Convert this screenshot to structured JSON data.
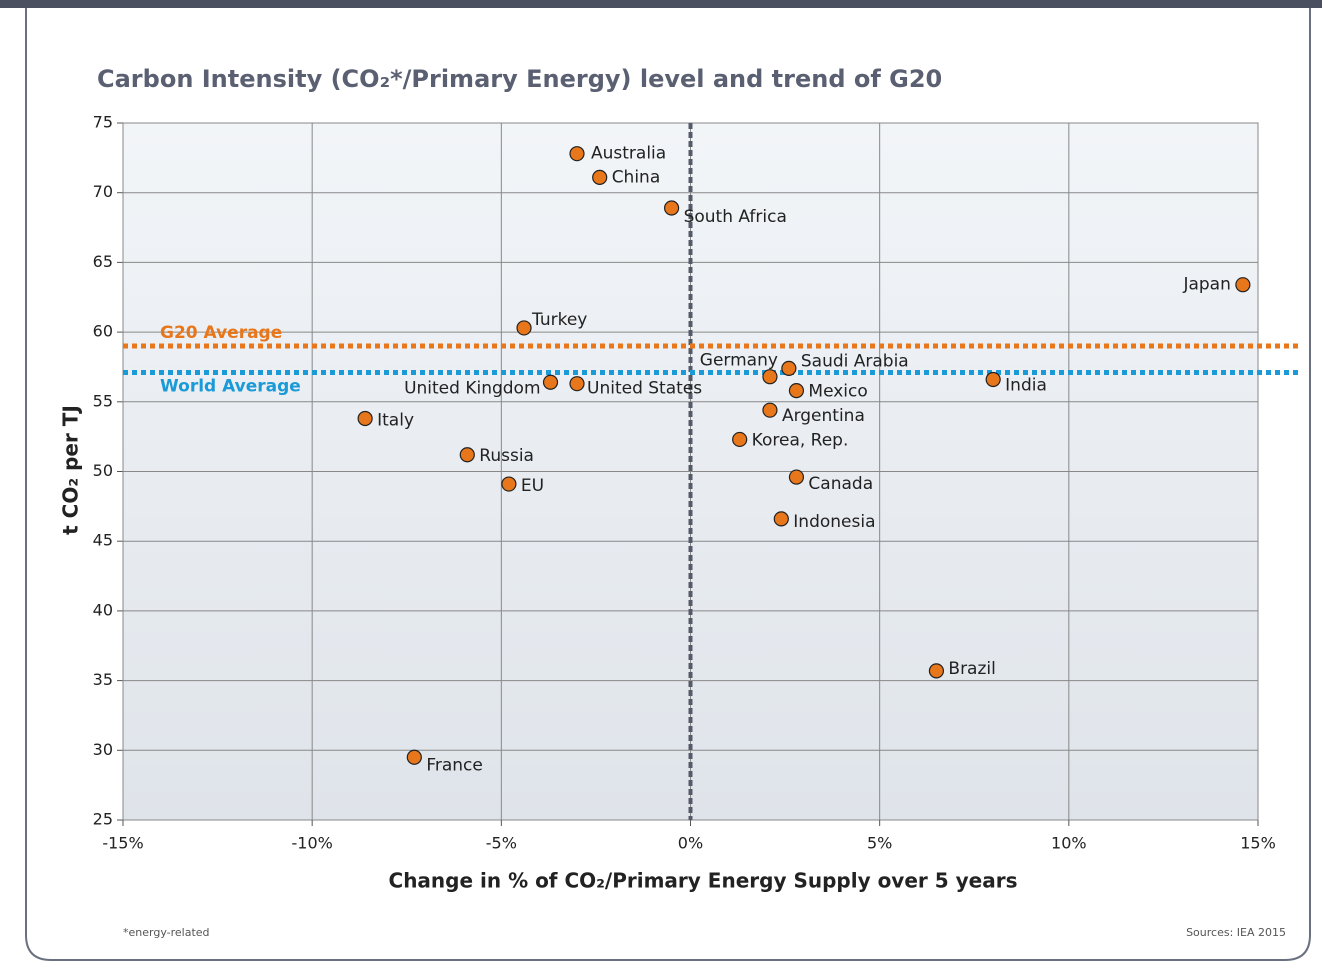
{
  "chart_data": {
    "type": "scatter",
    "title": "Carbon Intensity (CO₂*/Primary Energy) level and trend of G20",
    "x_label": "Change in % of CO₂/Primary Energy Supply over 5 years",
    "y_label": "t CO₂ per TJ",
    "footnote": "*energy-related",
    "source": "Sources: IEA 2015",
    "xlim": [
      -15,
      15
    ],
    "xticks": [
      {
        "value": -15,
        "label": "-15%"
      },
      {
        "value": -10,
        "label": "-10%"
      },
      {
        "value": -5,
        "label": "-5%"
      },
      {
        "value": 0,
        "label": "0%"
      },
      {
        "value": 5,
        "label": "5%"
      },
      {
        "value": 10,
        "label": "10%"
      },
      {
        "value": 15,
        "label": "15%"
      }
    ],
    "ylim": [
      25,
      75
    ],
    "yticks": [
      25,
      30,
      35,
      40,
      45,
      50,
      55,
      60,
      65,
      70,
      75
    ],
    "grid": true,
    "x_reference": 0,
    "reference_lines": [
      {
        "label": "G20 Average",
        "value": 59.0,
        "color": "#e8761a"
      },
      {
        "label": "World Average",
        "value": 57.1,
        "color": "#1a9ad6"
      }
    ],
    "series": [
      {
        "color": "#e8761a",
        "labels": [
          "Australia",
          "China",
          "South Africa",
          "Japan",
          "Turkey",
          "Germany",
          "Saudi Arabia",
          "Mexico",
          "India",
          "United Kingdom",
          "United States",
          "Argentina",
          "Korea, Rep.",
          "Italy",
          "Russia",
          "EU",
          "Canada",
          "Indonesia",
          "Brazil",
          "France"
        ],
        "x": [
          -3.0,
          -2.4,
          -0.5,
          14.6,
          -4.4,
          2.1,
          2.6,
          2.8,
          8.0,
          -3.7,
          -3.0,
          2.1,
          1.3,
          -8.6,
          -5.9,
          -4.8,
          2.8,
          2.4,
          6.5,
          -7.3
        ],
        "values": [
          72.8,
          71.1,
          68.9,
          63.4,
          60.3,
          56.8,
          57.4,
          55.8,
          56.6,
          56.4,
          56.3,
          54.4,
          52.3,
          53.8,
          51.2,
          49.1,
          49.6,
          46.6,
          35.7,
          29.5
        ]
      }
    ]
  }
}
